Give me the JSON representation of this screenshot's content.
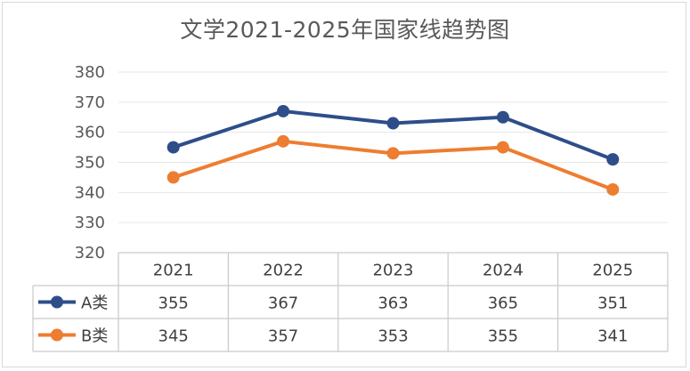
{
  "chart_data": {
    "type": "line",
    "title": "文学2021-2025年国家线趋势图",
    "categories": [
      "2021",
      "2022",
      "2023",
      "2024",
      "2025"
    ],
    "ylim": [
      320,
      380
    ],
    "yticks": [
      320,
      330,
      340,
      350,
      360,
      370,
      380
    ],
    "grid": true,
    "legend_placement": "data-table-left",
    "series": [
      {
        "name": "A类",
        "values": [
          355,
          367,
          363,
          365,
          351
        ],
        "color": "#2e4e8a"
      },
      {
        "name": "B类",
        "values": [
          345,
          357,
          353,
          355,
          341
        ],
        "color": "#ed7d31"
      }
    ]
  }
}
